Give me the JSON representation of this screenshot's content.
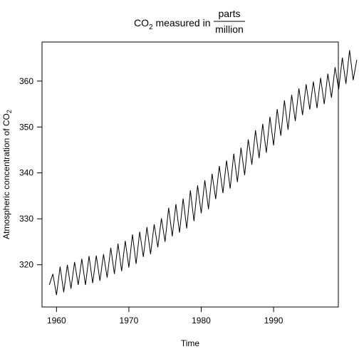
{
  "chart_data": {
    "type": "line",
    "title": {
      "prefix": "CO",
      "subscript": "2",
      "middle": " measured in ",
      "fraction_numerator": "parts",
      "fraction_denominator": "million"
    },
    "xlabel": "Time",
    "ylabel": {
      "prefix": "Atmospheric concentration of CO",
      "subscript": "2"
    },
    "xlim": [
      1958.0,
      1998.95
    ],
    "ylim": [
      310.8,
      368.5
    ],
    "x_ticks": [
      1960,
      1970,
      1980,
      1990
    ],
    "x_tick_labels": [
      "1960",
      "1970",
      "1980",
      "1990"
    ],
    "y_ticks": [
      320,
      330,
      340,
      350,
      360
    ],
    "y_tick_labels": [
      "320",
      "330",
      "340",
      "350",
      "360"
    ],
    "grid": false,
    "legend": "none",
    "series": [
      {
        "x_start": 1959.0,
        "x_step": 0.5,
        "values": [
          315.6,
          318.0,
          313.4,
          319.6,
          314.0,
          320.0,
          314.8,
          320.6,
          315.6,
          321.3,
          315.6,
          321.9,
          316.0,
          322.0,
          316.5,
          322.3,
          317.2,
          323.7,
          318.0,
          324.6,
          318.6,
          325.2,
          319.4,
          326.6,
          320.2,
          327.2,
          321.7,
          328.2,
          322.3,
          328.8,
          323.8,
          330.1,
          325.0,
          332.4,
          326.2,
          333.2,
          327.0,
          334.4,
          327.9,
          336.2,
          329.5,
          337.3,
          331.2,
          338.4,
          332.1,
          339.8,
          334.3,
          341.5,
          335.6,
          342.7,
          336.6,
          344.2,
          338.0,
          345.5,
          339.5,
          347.3,
          341.8,
          349.3,
          343.2,
          350.7,
          344.4,
          352.2,
          346.0,
          353.9,
          348.1,
          355.8,
          349.4,
          357.0,
          351.3,
          358.4,
          352.6,
          359.3,
          353.8,
          359.9,
          354.1,
          360.7,
          355.0,
          361.6,
          356.4,
          363.0,
          358.2,
          365.1,
          359.4,
          366.7,
          360.2,
          364.6
        ]
      }
    ]
  }
}
